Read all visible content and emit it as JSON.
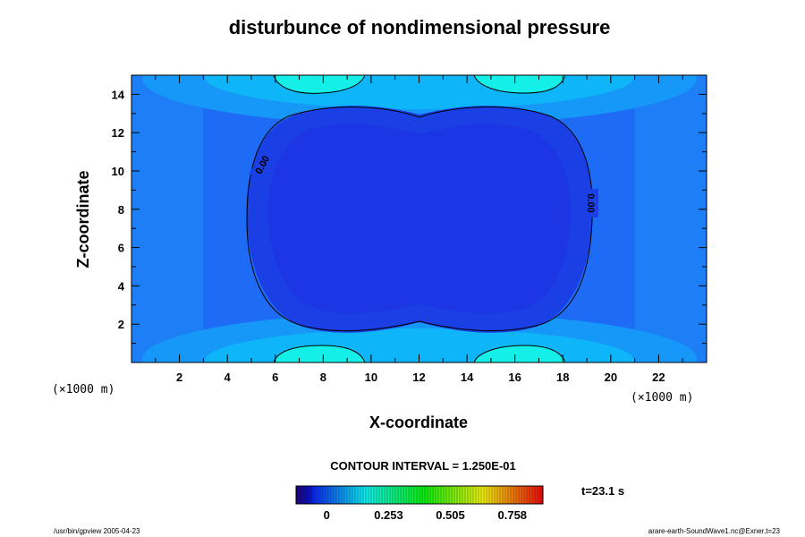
{
  "chart_data": {
    "type": "heatmap",
    "title": "disturbunce of nondimensional pressure",
    "xlabel": "X-coordinate",
    "ylabel": "Z-coordinate",
    "x_scale_label": "(×1000 m)",
    "z_scale_label": "(×1000 m)",
    "xlim": [
      0,
      24
    ],
    "ylim": [
      0,
      15
    ],
    "x_ticks": [
      2,
      4,
      6,
      8,
      10,
      12,
      14,
      16,
      18,
      20,
      22
    ],
    "y_ticks": [
      2,
      4,
      6,
      8,
      10,
      12,
      14
    ],
    "contour_interval_text": "CONTOUR INTERVAL = 1.250E-01",
    "time_text": "t=23.1 s",
    "contour_labels": [
      "0.00",
      "0.00"
    ],
    "colorbar": {
      "range": [
        -0.125,
        0.883
      ],
      "tick_labels": [
        "0",
        "0.253",
        "0.505",
        "0.758"
      ],
      "tick_values": [
        0,
        0.253,
        0.505,
        0.758
      ]
    },
    "field_description_levels": {
      "background": 0.0,
      "central_low": -0.07,
      "top_bottom_maxima": 0.25
    }
  },
  "footer": {
    "left": "/usr/bin/gpview 2005-04-23",
    "right": "arare-earth-SoundWave1.nc@Exner,t=23"
  },
  "colors": {
    "dark_blue": "#1a2fe0",
    "mid_blue": "#2458f0",
    "blue": "#1e6cf5",
    "light_blue": "#1d8ff7",
    "sky": "#12b4fa",
    "cyan": "#00e5f5",
    "bright_cyan": "#14f5e8"
  }
}
